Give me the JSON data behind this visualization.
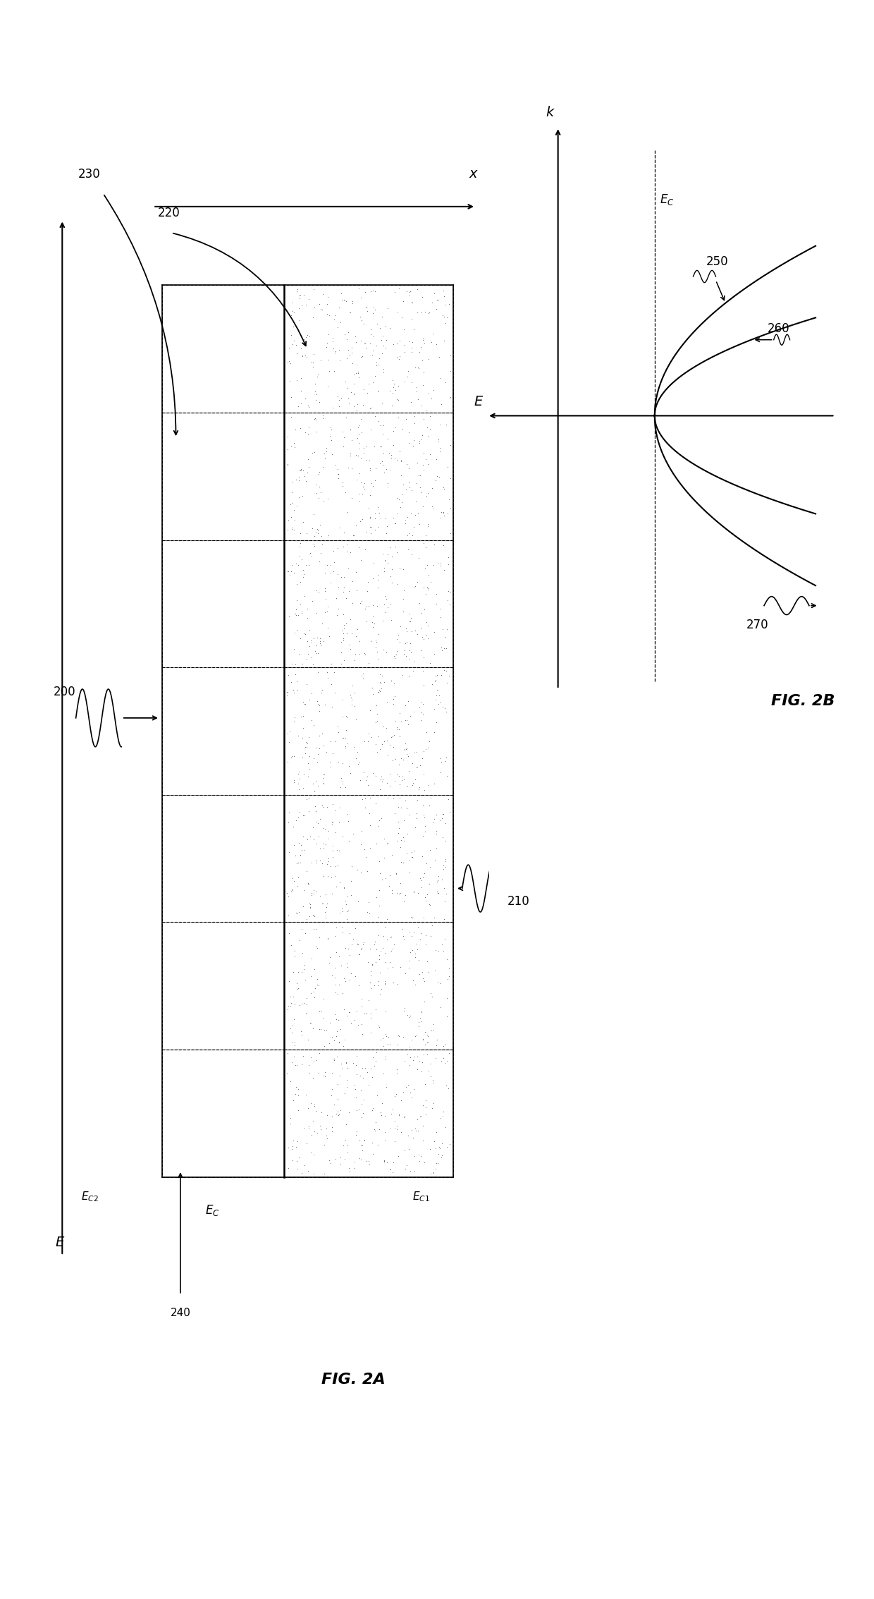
{
  "fig_width": 12.4,
  "fig_height": 22.67,
  "background_color": "#ffffff",
  "n_layers": 7,
  "layer_colors": {
    "plain": "#ffffff",
    "stippled": "#ffffff"
  },
  "line_color": "#000000",
  "text_color": "#000000"
}
